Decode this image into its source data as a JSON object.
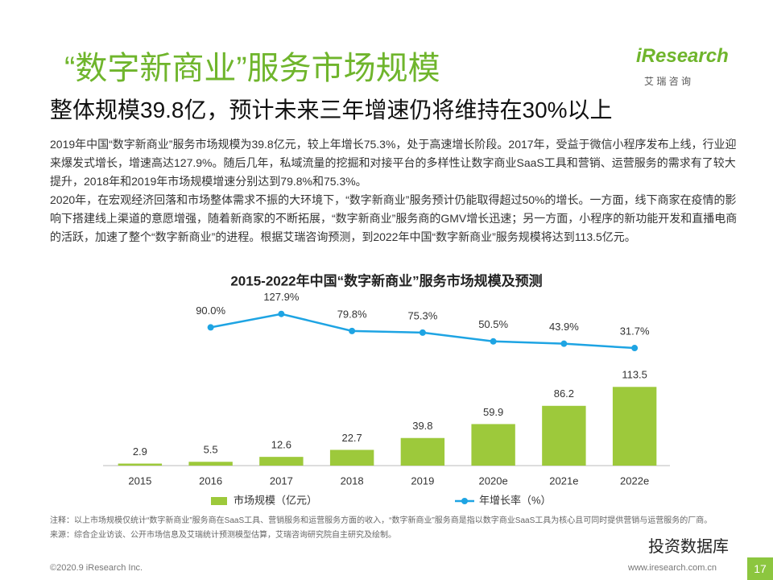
{
  "header": {
    "title": "“数字新商业”服务市场规模",
    "subtitle": "整体规模39.8亿，预计未来三年增速仍将维持在30%以上",
    "logo": "iResearch",
    "logo_sub": "艾 瑞 咨 询"
  },
  "paragraphs": [
    "2019年中国“数字新商业”服务市场规模为39.8亿元，较上年增长75.3%，处于高速增长阶段。2017年，受益于微信小程序发布上线，行业迎来爆发式增长，增速高达127.9%。随后几年，私域流量的挖掘和对接平台的多样性让数字商业SaaS工具和营销、运营服务的需求有了较大提升，2018年和2019年市场规模增速分别达到79.8%和75.3%。",
    "2020年，在宏观经济回落和市场整体需求不振的大环境下，“数字新商业”服务预计仍能取得超过50%的增长。一方面，线下商家在疫情的影响下搭建线上渠道的意愿增强，随着新商家的不断拓展，“数字新商业”服务商的GMV增长迅速；另一方面，小程序的新功能开发和直播电商的活跃，加速了整个“数字新商业”的进程。根据艾瑞咨询预测，到2022年中国“数字新商业”服务规模将达到113.5亿元。"
  ],
  "chart_data": {
    "type": "bar",
    "title": "2015-2022年中国“数字新商业”服务市场规模及预测",
    "categories": [
      "2015",
      "2016",
      "2017",
      "2018",
      "2019",
      "2020e",
      "2021e",
      "2022e"
    ],
    "series": [
      {
        "name": "市场规模（亿元）",
        "color": "#9dc93b",
        "values": [
          2.9,
          5.5,
          12.6,
          22.7,
          39.8,
          59.9,
          86.2,
          113.5
        ]
      },
      {
        "name": "年增长率（%）",
        "type": "line",
        "axis": "y2",
        "color": "#1ea4e3",
        "values": [
          null,
          90.0,
          127.9,
          79.8,
          75.3,
          50.5,
          43.9,
          31.7
        ],
        "value_labels": [
          null,
          "90.0%",
          "127.9%",
          "79.8%",
          "75.3%",
          "50.5%",
          "43.9%",
          "31.7%"
        ]
      }
    ],
    "ylim": [
      0,
      230
    ],
    "y2lim": [
      -300,
      150
    ],
    "legend": "bottom"
  },
  "notes": [
    "注释：以上市场规模仅统计“数字新商业”服务商在SaaS工具、营销服务和运营服务方面的收入，“数字新商业”服务商是指以数字商业SaaS工具为核心且可同时提供营销与运营服务的厂商。",
    "来源：综合企业访谈、公开市场信息及艾瑞统计预测模型估算，艾瑞咨询研究院自主研究及绘制。"
  ],
  "footer": {
    "copyright": "©2020.9 iResearch Inc.",
    "url": "www.iresearch.com.cn",
    "page": "17",
    "watermark": "投资数据库"
  }
}
